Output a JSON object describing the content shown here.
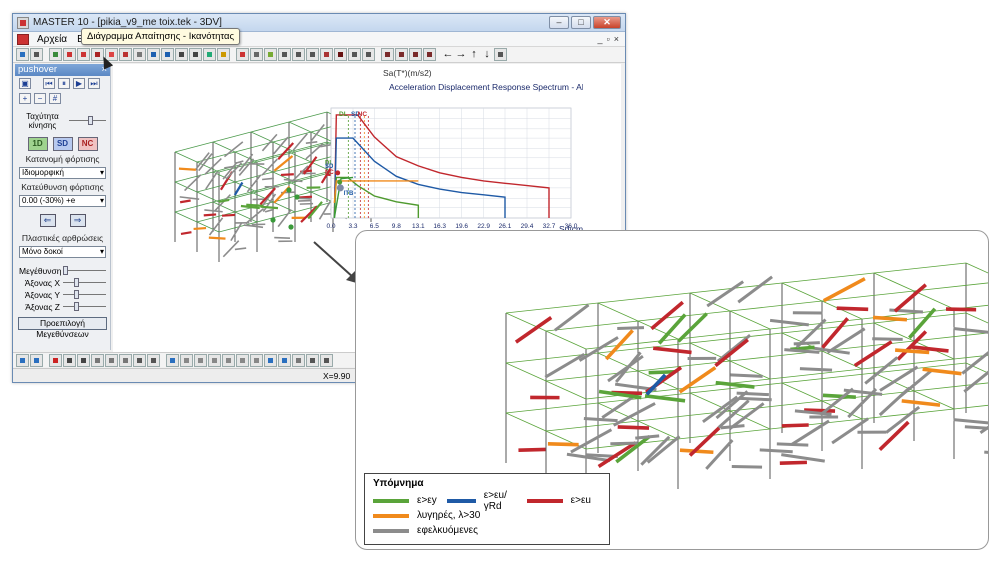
{
  "window": {
    "title": "MASTER 10 - [pikia_v9_me toix.tek - 3DV]",
    "caption_buttons": [
      "–",
      "□",
      "✕"
    ],
    "mdi_buttons": [
      "_",
      "▫",
      "×"
    ]
  },
  "menu": {
    "items": [
      "Αρχεία",
      "Επ"
    ]
  },
  "tooltip": "Διάγραμμα Απαίτησης - Ικανότητας",
  "toolbar": {
    "nav_arrows": [
      "←",
      "→",
      "↑",
      "↓"
    ]
  },
  "panel": {
    "title": "pushover",
    "close": "×",
    "speed_label": "Ταχύτητα κίνησης",
    "mode_buttons": [
      "1D",
      "SD",
      "NC"
    ],
    "distribution_label": "Κατανομή φόρτισης",
    "distribution_value": "Ιδιομορφική",
    "direction_label": "Κατεύθυνση φόρτισης",
    "direction_value": "0.00 (-30%) +e",
    "arrows": [
      "⇐",
      "⇒"
    ],
    "hinges_label": "Πλαστικές αρθρώσεις",
    "hinges_value": "Μόνο δοκοί",
    "size_label": "Μεγέθυνση",
    "axis_x": "Άξονας Χ",
    "axis_y": "Άξονας Υ",
    "axis_z": "Άξονας Ζ",
    "preset_button": "Προεπιλογή Μεγεθύνσεων"
  },
  "statusbar": {
    "coord": "X=9.90"
  },
  "chart_data": {
    "type": "line",
    "title": "Acceleration Displacement Response Spectrum - ADRS",
    "ylabel": "Sa(T*)(m/s2)",
    "xlabel": "Sd/cm",
    "xlim": [
      0,
      36
    ],
    "ylim": [
      0,
      9.5
    ],
    "xticks": [
      "0.0",
      "3.3",
      "6.5",
      "9.8",
      "13.1",
      "16.3",
      "19.6",
      "22.9",
      "26.1",
      "29.4",
      "32.7",
      "36.0"
    ],
    "yticks": [
      "0.0",
      "0.9",
      "1.7",
      "2.6",
      "3.4",
      "4.3",
      "5.2",
      "6.0",
      "6.9",
      "7.7",
      "8.6",
      "9.5"
    ],
    "vertical_labels": [
      "DL",
      "SD",
      "NC"
    ],
    "point_labels": [
      "DL",
      "SD",
      "NC",
      "ITB"
    ],
    "series": [
      {
        "color": "#c1272d",
        "x": [
          0.5,
          0.8,
          4.0,
          6.5,
          9.8,
          13.1,
          16.3,
          19.6,
          22.9,
          26.1,
          29.4,
          32.7,
          32.7
        ],
        "y": [
          0.0,
          8.9,
          8.9,
          7.0,
          5.3,
          4.5,
          3.9,
          3.5,
          3.2,
          3.0,
          2.8,
          2.6,
          0.0
        ]
      },
      {
        "color": "#1f5aa6",
        "x": [
          0.5,
          0.8,
          3.3,
          6.5,
          9.8,
          13.1,
          16.3,
          19.6,
          22.9,
          26.1,
          26.1
        ],
        "y": [
          0.0,
          6.9,
          6.9,
          4.9,
          3.6,
          2.9,
          2.5,
          2.2,
          2.0,
          1.8,
          0.0
        ]
      },
      {
        "color": "#4f9a2f",
        "x": [
          0.5,
          0.8,
          2.5,
          4.0,
          6.5,
          9.8,
          13.1,
          13.1
        ],
        "y": [
          0.0,
          3.5,
          3.5,
          2.8,
          1.9,
          1.4,
          1.1,
          0.0
        ]
      },
      {
        "color": "#f08a1c",
        "x": [
          0.5,
          0.8,
          9.8,
          13.1
        ],
        "y": [
          1.3,
          3.2,
          3.2,
          3.2
        ]
      },
      {
        "color": "#3a9a3a",
        "x": [
          0.5,
          1.5,
          3.3
        ],
        "y": [
          0.0,
          3.4,
          3.5
        ]
      }
    ]
  },
  "legend": {
    "title": "Υπόμνημα",
    "items": [
      {
        "label": "ε>εy",
        "color": "#5aa43a"
      },
      {
        "label": "ε>εu/γRd",
        "color": "#1f5aa6"
      },
      {
        "label": "ε>εu",
        "color": "#c1272d"
      },
      {
        "label": "λυγηρές, λ>30",
        "color": "#f08a1c"
      },
      {
        "label": "εφελκυόμενες",
        "color": "#8c8c8c"
      }
    ]
  }
}
